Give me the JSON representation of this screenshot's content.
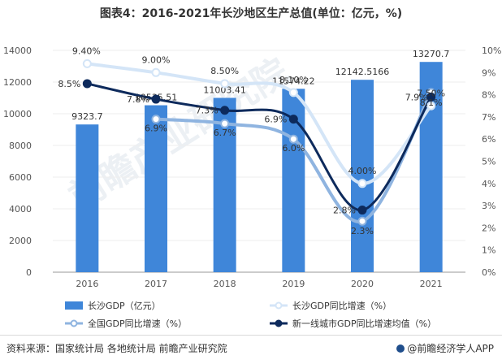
{
  "chart_data": {
    "type": "bar",
    "title": "图表4：2016-2021年长沙地区生产总值(单位：亿元，%)",
    "categories": [
      "2016",
      "2017",
      "2018",
      "2019",
      "2020",
      "2021"
    ],
    "left_axis": {
      "min": 0,
      "max": 14000,
      "ticks": [
        "0",
        "2000",
        "4000",
        "6000",
        "8000",
        "10000",
        "12000",
        "14000"
      ]
    },
    "right_axis": {
      "min": 0,
      "max": 10,
      "ticks": [
        "0%",
        "1%",
        "2%",
        "3%",
        "4%",
        "5%",
        "6%",
        "7%",
        "8%",
        "9%",
        "10%"
      ]
    },
    "bars": {
      "name": "长沙GDP（亿元）",
      "values": [
        9323.7,
        10535.51,
        11003.41,
        11574.22,
        12142.5166,
        13270.7
      ],
      "labels": [
        "9323.7",
        "10535.51",
        "11003.41",
        "11574.22",
        "12142.5166",
        "13270.7"
      ],
      "color": "#3f86d9"
    },
    "series": [
      {
        "name": "长沙GDP同比增速（%）",
        "values": [
          9.4,
          9.0,
          8.5,
          8.1,
          4.0,
          7.5
        ],
        "labels": [
          "9.40%",
          "9.00%",
          "8.50%",
          "8.10%",
          "4.00%",
          "7.50%"
        ],
        "color": "#d4e5f7"
      },
      {
        "name": "全国GDP同比增速（%）",
        "values": [
          null,
          6.9,
          6.7,
          6.0,
          2.3,
          8.1
        ],
        "labels": [
          "",
          "6.9%",
          "6.7%",
          "6.0%",
          "2.3%",
          "8.1%"
        ],
        "color": "#8fb4e0"
      },
      {
        "name": "新一线城市GDP同比增速均值（%）",
        "values": [
          8.5,
          7.8,
          7.3,
          6.9,
          2.8,
          7.9
        ],
        "labels": [
          "8.5%",
          "7.8%",
          "7.3%",
          "6.9%",
          "2.8%",
          "7.9%"
        ],
        "color": "#0d2a5c"
      }
    ]
  },
  "footer": {
    "source": "资料来源：国家统计局 各地统计局 前瞻产业研究院",
    "brand": "@前瞻经济学人APP"
  },
  "watermark": "前瞻产业研究院"
}
